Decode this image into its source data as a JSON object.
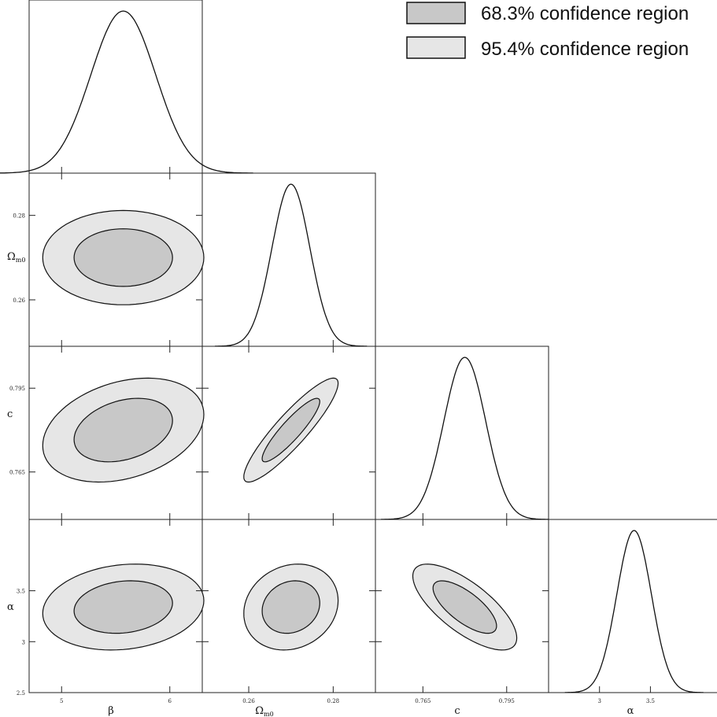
{
  "legend": {
    "inner_label": "68.3% confidence region",
    "outer_label": "95.4% confidence region"
  },
  "colors": {
    "inner_fill": "#c8c8c8",
    "outer_fill": "#e6e6e6",
    "stroke": "#111111",
    "frame": "#222222"
  },
  "chart_data": {
    "type": "corner",
    "parameters": [
      {
        "key": "beta",
        "label": "β",
        "range": [
          4.7,
          6.3
        ],
        "ticks": [
          5,
          6
        ],
        "tick_labels": [
          "5",
          "6"
        ],
        "mean": 5.57,
        "sigma": 0.3
      },
      {
        "key": "omega",
        "label": "Ω",
        "sub": "m0",
        "range": [
          0.249,
          0.29
        ],
        "ticks": [
          0.26,
          0.28
        ],
        "tick_labels": [
          "0.26",
          "0.28"
        ],
        "mean": 0.27,
        "sigma": 0.0045
      },
      {
        "key": "c",
        "label": "c",
        "range": [
          0.748,
          0.81
        ],
        "ticks": [
          0.765,
          0.795
        ],
        "tick_labels": [
          "0.765",
          "0.795"
        ],
        "mean": 0.78,
        "sigma": 0.0075
      },
      {
        "key": "alpha",
        "label": "α",
        "range": [
          2.5,
          4.2
        ],
        "ticks": [
          3,
          3.5
        ],
        "tick_labels": [
          "3",
          "3.5"
        ],
        "mean": 3.34,
        "sigma": 0.17
      }
    ],
    "correlations": [
      {
        "x": "beta",
        "y": "omega",
        "rho": 0.0
      },
      {
        "x": "beta",
        "y": "c",
        "rho": 0.3
      },
      {
        "x": "omega",
        "y": "c",
        "rho": 0.9
      },
      {
        "x": "beta",
        "y": "alpha",
        "rho": 0.15
      },
      {
        "x": "omega",
        "y": "alpha",
        "rho": 0.15
      },
      {
        "x": "c",
        "y": "alpha",
        "rho": -0.72
      }
    ],
    "confidence_levels": [
      0.683,
      0.954
    ]
  }
}
